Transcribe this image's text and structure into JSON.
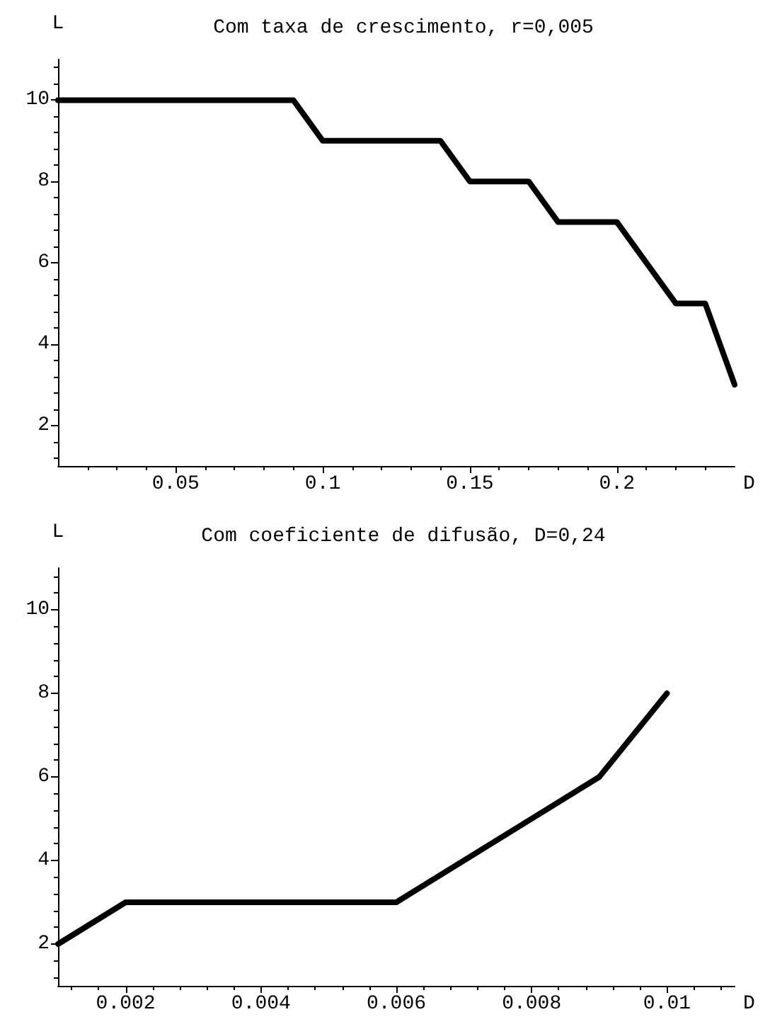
{
  "chart_data": [
    {
      "type": "line",
      "title": "Com taxa de crescimento, r=0,005",
      "xlabel": "D",
      "ylabel": "L",
      "x": [
        0.01,
        0.09,
        0.1,
        0.14,
        0.15,
        0.17,
        0.18,
        0.2,
        0.22,
        0.23,
        0.24
      ],
      "values": [
        10,
        10,
        9,
        9,
        8,
        8,
        7,
        7,
        5,
        5,
        3
      ],
      "color": "#000000",
      "xlim": [
        0.01,
        0.24
      ],
      "xticks": [
        0.05,
        0.1,
        0.15,
        0.2
      ],
      "ylim": [
        1,
        11
      ],
      "yticks": [
        2,
        4,
        6,
        8,
        10
      ],
      "grid": false,
      "marker": "none",
      "line_style": "solid"
    },
    {
      "type": "line",
      "title": "Com coeficiente de difusão, D=0,24",
      "xlabel": "D",
      "ylabel": "L",
      "x": [
        0.001,
        0.002,
        0.006,
        0.009,
        0.01
      ],
      "values": [
        2,
        3,
        3,
        6,
        8
      ],
      "color": "#000000",
      "xlim": [
        0.001,
        0.011
      ],
      "xticks": [
        0.002,
        0.004,
        0.006,
        0.008,
        0.01
      ],
      "ylim": [
        1,
        11
      ],
      "yticks": [
        2,
        4,
        6,
        8,
        10
      ],
      "grid": false,
      "marker": "none",
      "line_style": "solid"
    }
  ]
}
